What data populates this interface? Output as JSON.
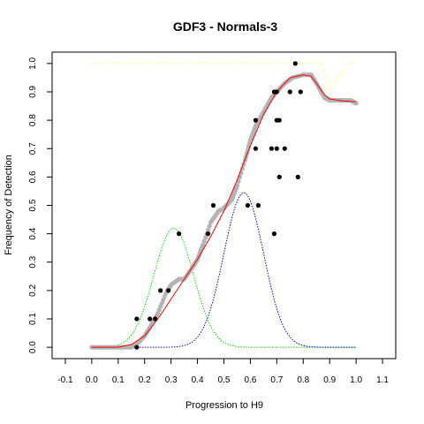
{
  "chart_data": {
    "type": "scatter",
    "title": "GDF3 - Normals-3",
    "xlabel": "Progression to H9",
    "ylabel": "Frequency of Detection",
    "xlim": [
      -0.15,
      1.15
    ],
    "ylim": [
      -0.04,
      1.04
    ],
    "x_ticks": [
      "-0.1",
      "0.0",
      "0.1",
      "0.2",
      "0.3",
      "0.4",
      "0.5",
      "0.6",
      "0.7",
      "0.8",
      "0.9",
      "1.0",
      "1.1"
    ],
    "x_tick_values": [
      -0.1,
      0.0,
      0.1,
      0.2,
      0.3,
      0.4,
      0.5,
      0.6,
      0.7,
      0.8,
      0.9,
      1.0,
      1.1
    ],
    "y_ticks": [
      "0.0",
      "0.1",
      "0.2",
      "0.3",
      "0.4",
      "0.5",
      "0.6",
      "0.7",
      "0.8",
      "0.9",
      "1.0"
    ],
    "y_tick_values": [
      0.0,
      0.1,
      0.2,
      0.3,
      0.4,
      0.5,
      0.6,
      0.7,
      0.8,
      0.9,
      1.0
    ],
    "grid": false,
    "colors": {
      "points": "#000000",
      "smooth": "#b4b4b4",
      "fit": "#ff0000",
      "green_component": "#00dd00",
      "blue_component": "#0000cc",
      "yellow_component": "#ffff66"
    },
    "points": [
      {
        "x": 0.17,
        "y": 0.1
      },
      {
        "x": 0.17,
        "y": 0.0
      },
      {
        "x": 0.22,
        "y": 0.1
      },
      {
        "x": 0.24,
        "y": 0.1
      },
      {
        "x": 0.26,
        "y": 0.2
      },
      {
        "x": 0.29,
        "y": 0.2
      },
      {
        "x": 0.33,
        "y": 0.4
      },
      {
        "x": 0.44,
        "y": 0.4
      },
      {
        "x": 0.46,
        "y": 0.5
      },
      {
        "x": 0.59,
        "y": 0.5
      },
      {
        "x": 0.63,
        "y": 0.5
      },
      {
        "x": 0.62,
        "y": 0.7
      },
      {
        "x": 0.62,
        "y": 0.8
      },
      {
        "x": 0.68,
        "y": 0.7
      },
      {
        "x": 0.7,
        "y": 0.7
      },
      {
        "x": 0.69,
        "y": 0.4
      },
      {
        "x": 0.69,
        "y": 0.9
      },
      {
        "x": 0.7,
        "y": 0.9
      },
      {
        "x": 0.7,
        "y": 0.8
      },
      {
        "x": 0.71,
        "y": 0.8
      },
      {
        "x": 0.71,
        "y": 0.6
      },
      {
        "x": 0.73,
        "y": 0.7
      },
      {
        "x": 0.75,
        "y": 0.9
      },
      {
        "x": 0.77,
        "y": 1.0
      },
      {
        "x": 0.78,
        "y": 0.6
      },
      {
        "x": 0.79,
        "y": 0.9
      }
    ],
    "smooth_series": [
      {
        "x": 0.0,
        "y": 0.0
      },
      {
        "x": 0.05,
        "y": 0.0
      },
      {
        "x": 0.1,
        "y": 0.0
      },
      {
        "x": 0.15,
        "y": 0.0
      },
      {
        "x": 0.18,
        "y": 0.02
      },
      {
        "x": 0.2,
        "y": 0.04
      },
      {
        "x": 0.22,
        "y": 0.07
      },
      {
        "x": 0.25,
        "y": 0.12
      },
      {
        "x": 0.28,
        "y": 0.19
      },
      {
        "x": 0.3,
        "y": 0.22
      },
      {
        "x": 0.33,
        "y": 0.24
      },
      {
        "x": 0.35,
        "y": 0.24
      },
      {
        "x": 0.38,
        "y": 0.28
      },
      {
        "x": 0.4,
        "y": 0.31
      },
      {
        "x": 0.42,
        "y": 0.36
      },
      {
        "x": 0.45,
        "y": 0.44
      },
      {
        "x": 0.48,
        "y": 0.48
      },
      {
        "x": 0.5,
        "y": 0.49
      },
      {
        "x": 0.53,
        "y": 0.52
      },
      {
        "x": 0.55,
        "y": 0.57
      },
      {
        "x": 0.58,
        "y": 0.66
      },
      {
        "x": 0.6,
        "y": 0.73
      },
      {
        "x": 0.62,
        "y": 0.78
      },
      {
        "x": 0.65,
        "y": 0.83
      },
      {
        "x": 0.68,
        "y": 0.88
      },
      {
        "x": 0.7,
        "y": 0.9
      },
      {
        "x": 0.73,
        "y": 0.93
      },
      {
        "x": 0.76,
        "y": 0.95
      },
      {
        "x": 0.8,
        "y": 0.96
      },
      {
        "x": 0.83,
        "y": 0.96
      },
      {
        "x": 0.85,
        "y": 0.93
      },
      {
        "x": 0.88,
        "y": 0.88
      },
      {
        "x": 0.9,
        "y": 0.87
      },
      {
        "x": 0.93,
        "y": 0.87
      },
      {
        "x": 0.95,
        "y": 0.87
      },
      {
        "x": 0.98,
        "y": 0.87
      },
      {
        "x": 1.0,
        "y": 0.86
      }
    ],
    "fit_curve": [
      {
        "x": 0.0,
        "y": 0.0
      },
      {
        "x": 0.05,
        "y": 0.0
      },
      {
        "x": 0.1,
        "y": 0.0
      },
      {
        "x": 0.15,
        "y": 0.01
      },
      {
        "x": 0.2,
        "y": 0.04
      },
      {
        "x": 0.25,
        "y": 0.1
      },
      {
        "x": 0.3,
        "y": 0.17
      },
      {
        "x": 0.35,
        "y": 0.24
      },
      {
        "x": 0.4,
        "y": 0.31
      },
      {
        "x": 0.45,
        "y": 0.39
      },
      {
        "x": 0.5,
        "y": 0.48
      },
      {
        "x": 0.55,
        "y": 0.59
      },
      {
        "x": 0.6,
        "y": 0.71
      },
      {
        "x": 0.65,
        "y": 0.82
      },
      {
        "x": 0.7,
        "y": 0.9
      },
      {
        "x": 0.75,
        "y": 0.95
      },
      {
        "x": 0.8,
        "y": 0.96
      },
      {
        "x": 0.83,
        "y": 0.955
      },
      {
        "x": 0.85,
        "y": 0.93
      },
      {
        "x": 0.88,
        "y": 0.89
      },
      {
        "x": 0.9,
        "y": 0.875
      },
      {
        "x": 0.95,
        "y": 0.868
      },
      {
        "x": 1.0,
        "y": 0.865
      }
    ],
    "gaussian_components": [
      {
        "color_key": "green_component",
        "mean": 0.31,
        "sd": 0.075,
        "peak": 0.42,
        "x_range": [
          0.0,
          1.0
        ]
      },
      {
        "color_key": "blue_component",
        "mean": 0.575,
        "sd": 0.075,
        "peak": 0.545,
        "x_range": [
          0.0,
          1.0
        ]
      }
    ],
    "yellow_step": {
      "x_range": [
        0.0,
        1.0
      ],
      "low": 0.0,
      "high": 1.0,
      "level_before": 1.0,
      "dip_center": 0.95,
      "note_points": [
        {
          "x": 0.0,
          "y": 1.0
        },
        {
          "x": 0.87,
          "y": 1.0
        },
        {
          "x": 0.9,
          "y": 0.9
        },
        {
          "x": 0.93,
          "y": 0.95
        },
        {
          "x": 0.97,
          "y": 1.0
        },
        {
          "x": 1.0,
          "y": 1.0
        }
      ]
    }
  }
}
